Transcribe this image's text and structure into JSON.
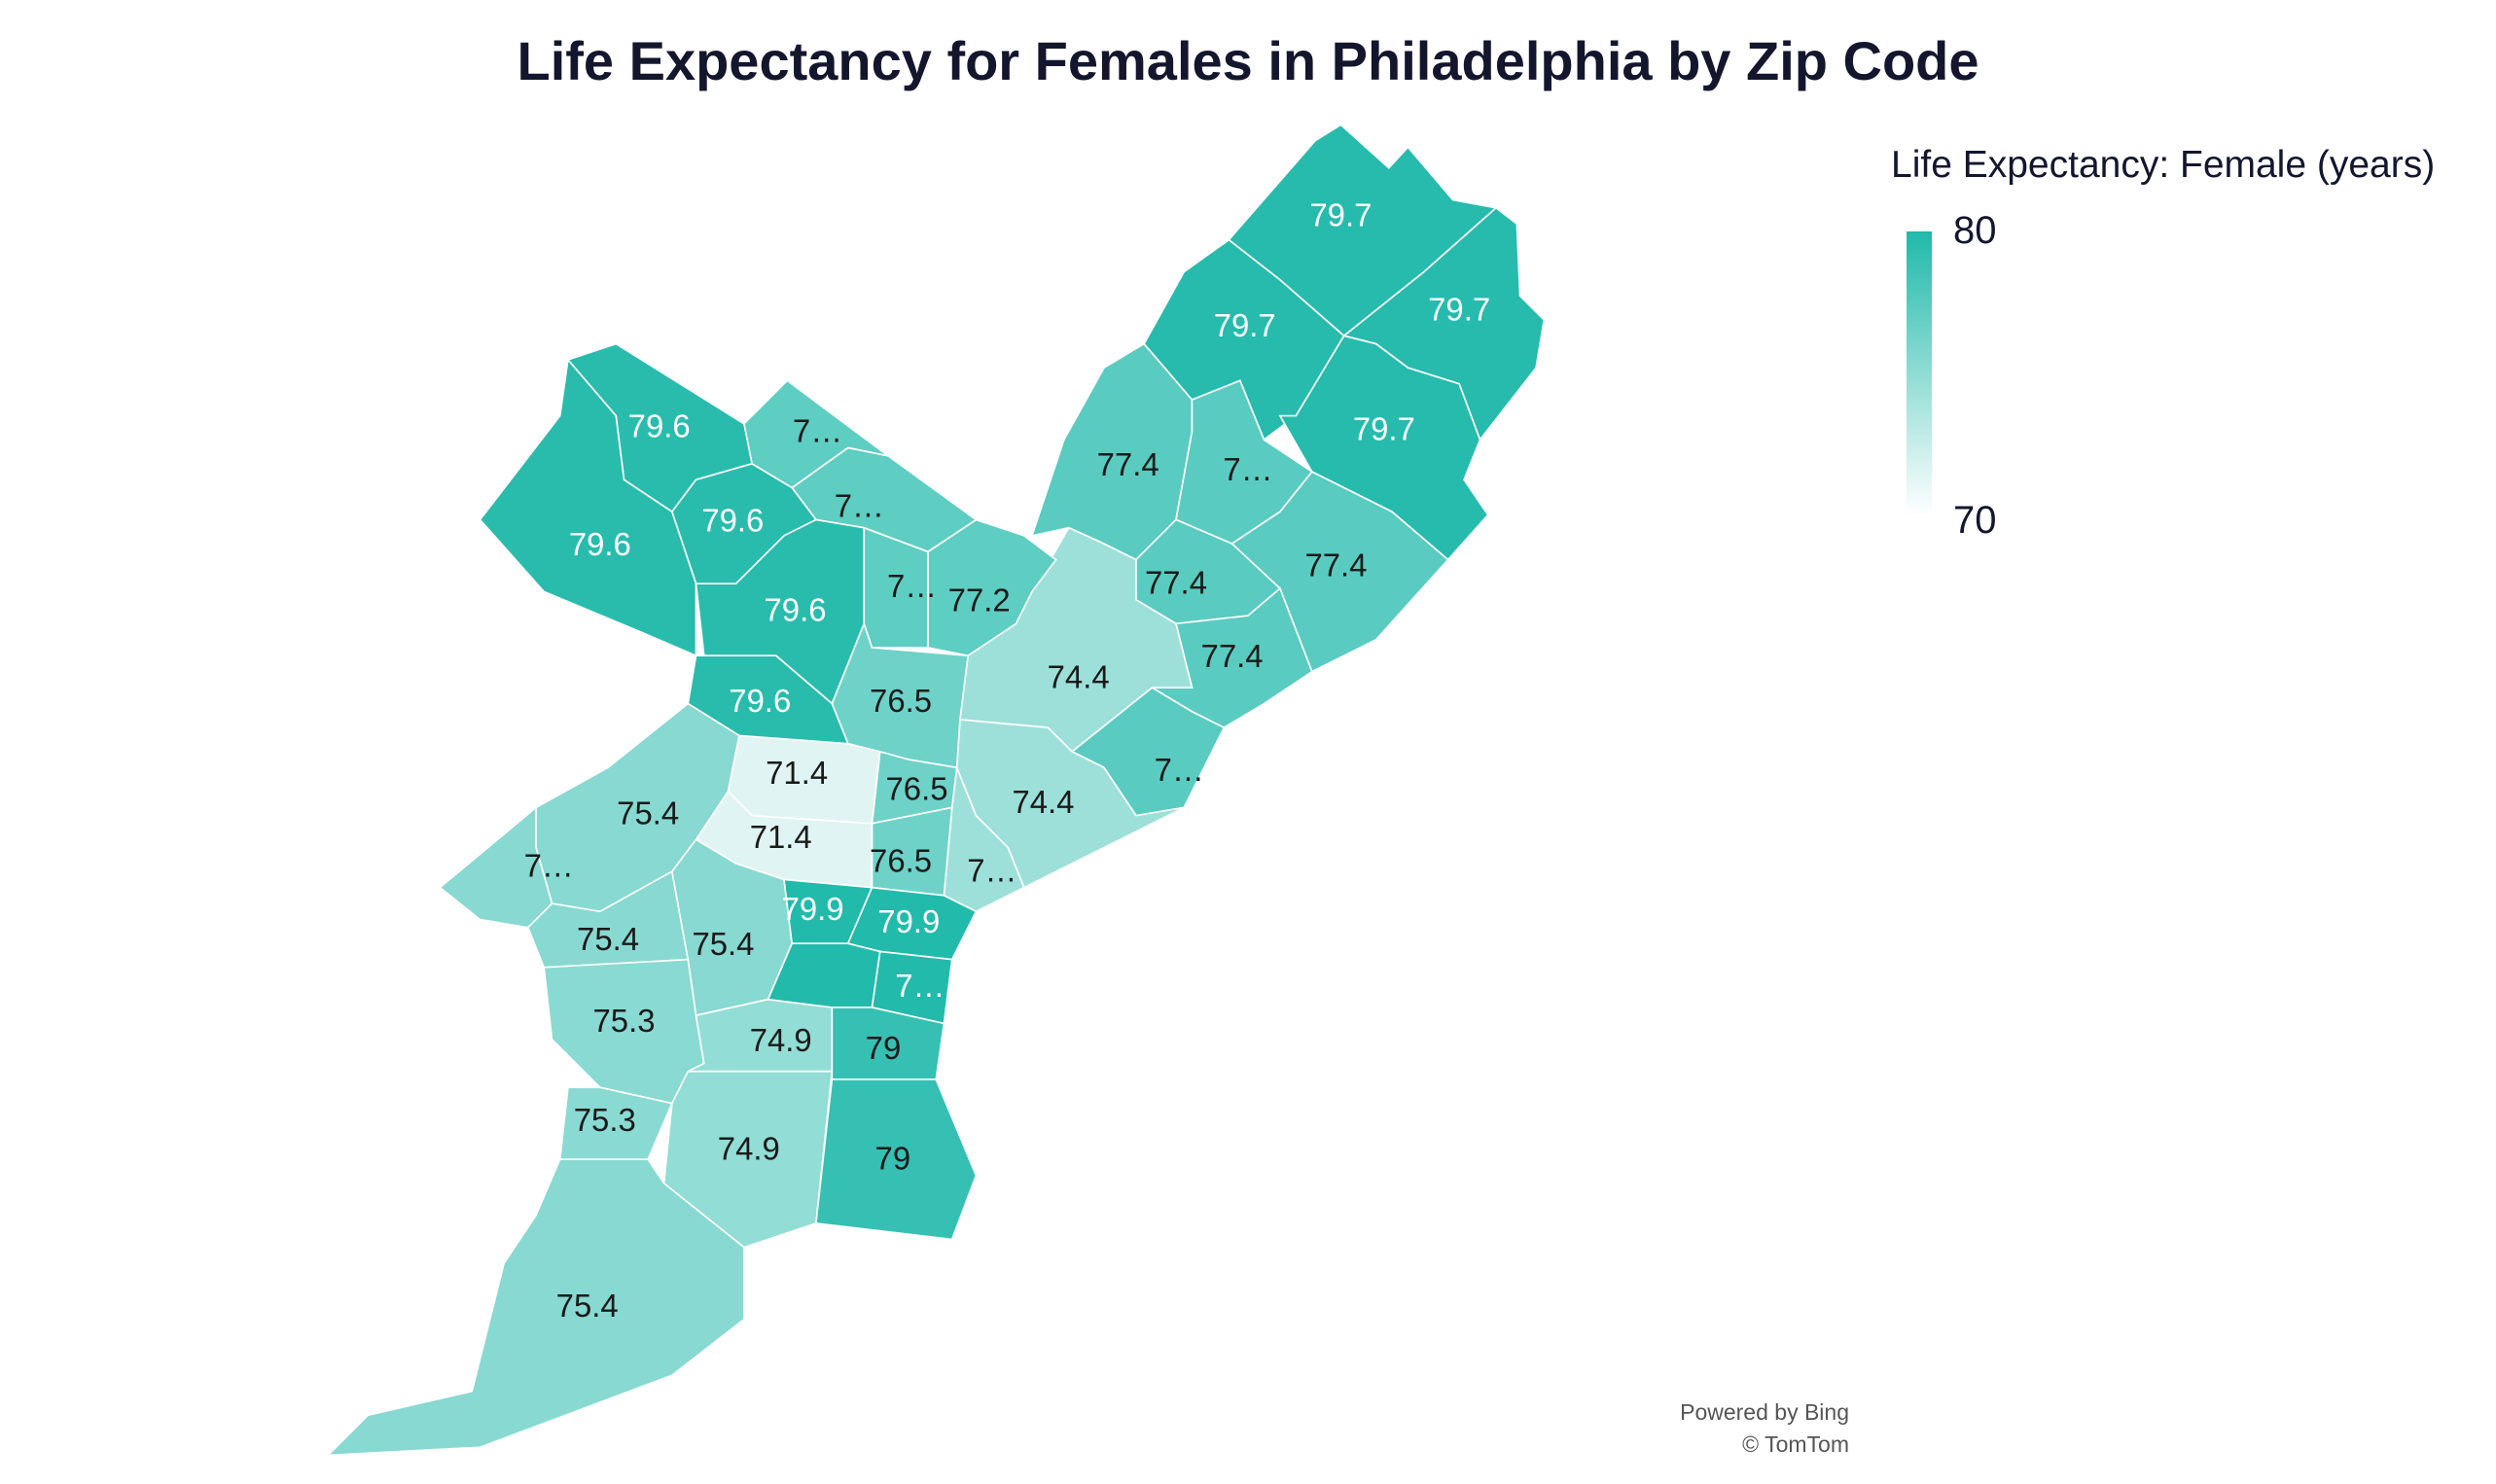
{
  "title": "Life Expectancy for Females in Philadelphia by Zip Code",
  "legend": {
    "title": "Life Expectancy: Female (years)",
    "max_label": "80",
    "min_label": "70",
    "min": 70,
    "max": 80,
    "color_min": "#ffffff",
    "color_max": "#20b9aa"
  },
  "attribution": {
    "line1": "Powered by Bing",
    "line2": "© TomTom"
  },
  "chart_data": {
    "type": "choropleth",
    "title": "Life Expectancy for Females in Philadelphia by Zip Code",
    "regions": [
      {
        "label": "79.7",
        "value": 79.7
      },
      {
        "label": "79.7",
        "value": 79.7
      },
      {
        "label": "79.7",
        "value": 79.7
      },
      {
        "label": "79.7",
        "value": 79.7
      },
      {
        "label": "77.4",
        "value": 77.4
      },
      {
        "label": "7…",
        "value": 77.4
      },
      {
        "label": "77.4",
        "value": 77.4
      },
      {
        "label": "77.4",
        "value": 77.4
      },
      {
        "label": "77.4",
        "value": 77.4
      },
      {
        "label": "7…",
        "value": 77.4
      },
      {
        "label": "74.4",
        "value": 74.4
      },
      {
        "label": "74.4",
        "value": 74.4
      },
      {
        "label": "7…",
        "value": 74.4
      },
      {
        "label": "77.2",
        "value": 77.2
      },
      {
        "label": "7…",
        "value": 77.2
      },
      {
        "label": "7…",
        "value": 77.2
      },
      {
        "label": "7…",
        "value": 77.2
      },
      {
        "label": "76.5",
        "value": 76.5
      },
      {
        "label": "76.5",
        "value": 76.5
      },
      {
        "label": "76.5",
        "value": 76.5
      },
      {
        "label": "71.4",
        "value": 71.4
      },
      {
        "label": "71.4",
        "value": 71.4
      },
      {
        "label": "79.6",
        "value": 79.6
      },
      {
        "label": "79.6",
        "value": 79.6
      },
      {
        "label": "79.6",
        "value": 79.6
      },
      {
        "label": "79.6",
        "value": 79.6
      },
      {
        "label": "79.6",
        "value": 79.6
      },
      {
        "label": "75.4",
        "value": 75.4
      },
      {
        "label": "7…",
        "value": 75.4
      },
      {
        "label": "75.4",
        "value": 75.4
      },
      {
        "label": "75.4",
        "value": 75.4
      },
      {
        "label": "75.3",
        "value": 75.3
      },
      {
        "label": "75.3",
        "value": 75.3
      },
      {
        "label": "74.9",
        "value": 74.9
      },
      {
        "label": "74.9",
        "value": 74.9
      },
      {
        "label": "75.4",
        "value": 75.4
      },
      {
        "label": "79.9",
        "value": 79.9
      },
      {
        "label": "79.9",
        "value": 79.9
      },
      {
        "label": "7…",
        "value": 79.9
      },
      {
        "label": "",
        "value": 79.9
      },
      {
        "label": "79",
        "value": 79
      },
      {
        "label": "79",
        "value": 79
      }
    ]
  }
}
